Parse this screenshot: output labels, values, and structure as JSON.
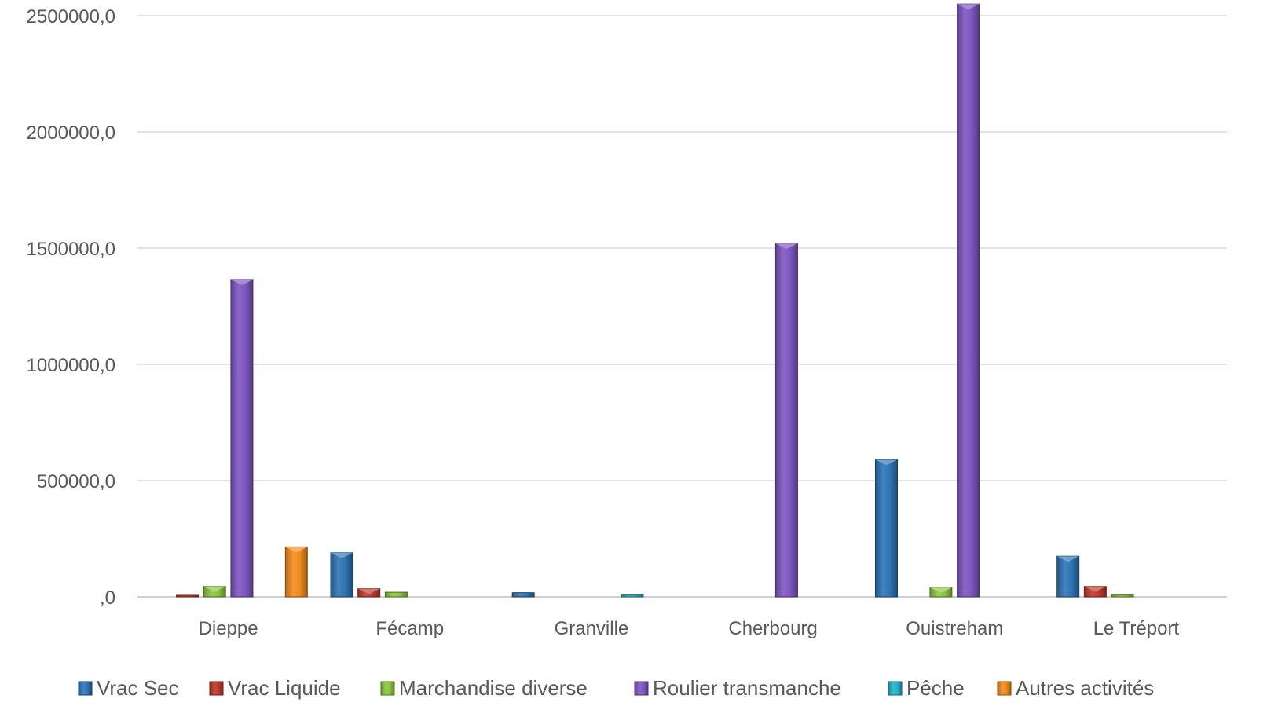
{
  "chart_data": {
    "type": "bar",
    "title": "",
    "xlabel": "",
    "ylabel": "",
    "ylim": [
      0,
      2550000
    ],
    "yticks": [
      0,
      500000,
      1000000,
      1500000,
      2000000,
      2500000
    ],
    "ytick_labels": [
      ",0",
      "500000,0",
      "1000000,0",
      "1500000,0",
      "2000000,0",
      "2500000,0"
    ],
    "grid": true,
    "legend_position": "bottom",
    "categories": [
      "Dieppe",
      "Fécamp",
      "Granville",
      "Cherbourg",
      "Ouistreham",
      "Le Tréport"
    ],
    "series": [
      {
        "name": "Vrac Sec",
        "color": "#2e75b6",
        "values": [
          0,
          190000,
          18000,
          0,
          590000,
          175000
        ]
      },
      {
        "name": "Vrac Liquide",
        "color": "#c0392b",
        "values": [
          5000,
          35000,
          0,
          0,
          0,
          45000
        ]
      },
      {
        "name": "Marchandise diverse",
        "color": "#8cc63f",
        "values": [
          45000,
          20000,
          0,
          0,
          40000,
          8000
        ]
      },
      {
        "name": "Roulier transmanche",
        "color": "#7e57c2",
        "values": [
          1365000,
          0,
          0,
          1520000,
          2550000,
          0
        ]
      },
      {
        "name": "Pêche",
        "color": "#27b3c9",
        "values": [
          0,
          0,
          8000,
          0,
          0,
          0
        ]
      },
      {
        "name": "Autres activités",
        "color": "#f28c1e",
        "values": [
          215000,
          0,
          0,
          0,
          0,
          0
        ]
      }
    ]
  }
}
